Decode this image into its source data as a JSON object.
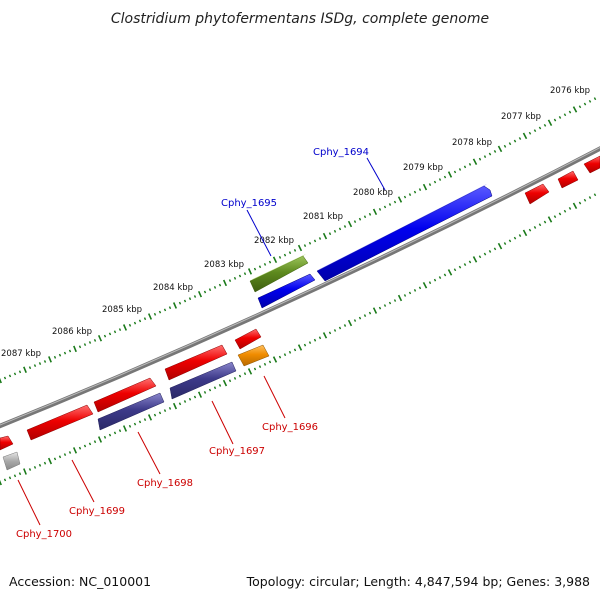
{
  "title": "Clostridium phytofermentans ISDg, complete genome",
  "footer": {
    "accession": "Accession: NC_010001",
    "topology": "Topology: circular; Length: 4,847,594 bp; Genes: 3,988"
  },
  "kbp_labels": [
    "2076 kbp",
    "2077 kbp",
    "2078 kbp",
    "2079 kbp",
    "2080 kbp",
    "2081 kbp",
    "2082 kbp",
    "2083 kbp",
    "2084 kbp",
    "2085 kbp",
    "2086 kbp",
    "2087 kbp"
  ],
  "gene_labels": {
    "cphy_1694": "Cphy_1694",
    "cphy_1695": "Cphy_1695",
    "cphy_1696": "Cphy_1696",
    "cphy_1697": "Cphy_1697",
    "cphy_1698": "Cphy_1698",
    "cphy_1699": "Cphy_1699",
    "cphy_1700": "Cphy_1700"
  },
  "colors": {
    "backbone": "#777777",
    "tick": "#1a7a1a",
    "label_blue": "#0000cc",
    "label_red": "#cc0000",
    "gene_red": "#ee0000",
    "gene_blue": "#0000ee",
    "gene_purple": "#3d3a8a",
    "gene_olive": "#5e8a1e",
    "gene_orange": "#f08c00",
    "gene_grey": "#aaaaaa"
  }
}
